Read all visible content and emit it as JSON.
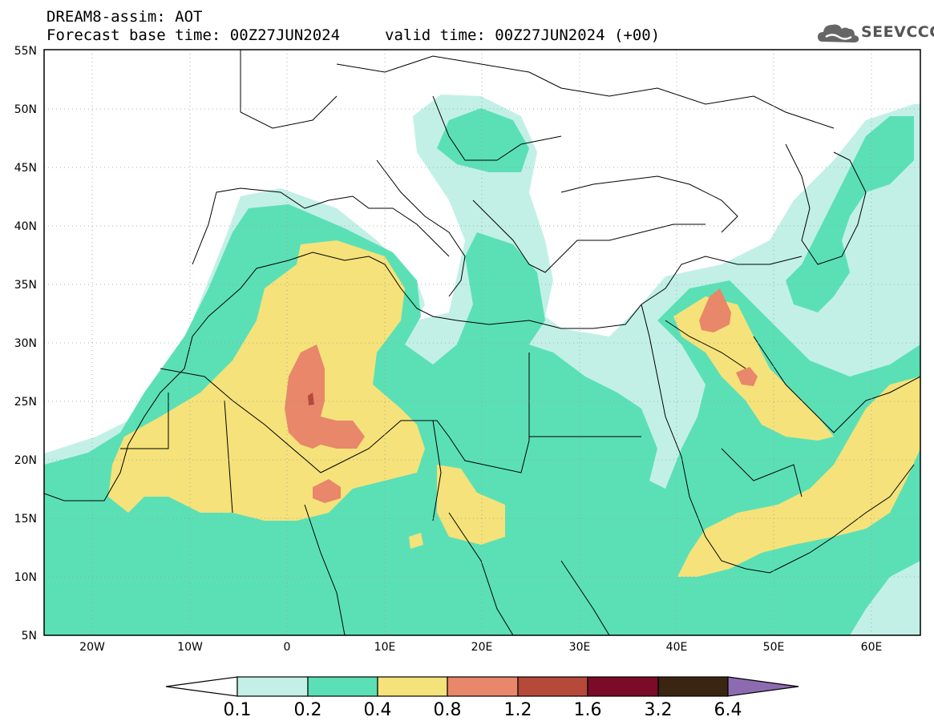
{
  "header": {
    "model_line": "DREAM8-assim: AOT",
    "base_time_line": "Forecast base time: 00Z27JUN2024",
    "valid_time_line": "valid time: 00Z27JUN2024 (+00)"
  },
  "logo": {
    "text": "SEEVCCC",
    "icon": "cloud-logo-icon"
  },
  "map": {
    "lon_range": [
      -25,
      65
    ],
    "lat_range": [
      5,
      55
    ],
    "lat_labels": [
      "5N",
      "10N",
      "15N",
      "20N",
      "25N",
      "30N",
      "35N",
      "40N",
      "45N",
      "50N",
      "55N"
    ],
    "lon_labels": [
      "20W",
      "10W",
      "0",
      "10E",
      "20E",
      "30E",
      "40E",
      "50E",
      "60E"
    ]
  },
  "legend": {
    "thresholds": [
      "0.1",
      "0.2",
      "0.4",
      "0.8",
      "1.2",
      "1.6",
      "3.2",
      "6.4"
    ],
    "colors": [
      "#c2f0e6",
      "#5be0b6",
      "#f5e27a",
      "#e8876a",
      "#b5493a",
      "#7a0c2a",
      "#3a2412",
      "#8d6bb0"
    ]
  }
}
